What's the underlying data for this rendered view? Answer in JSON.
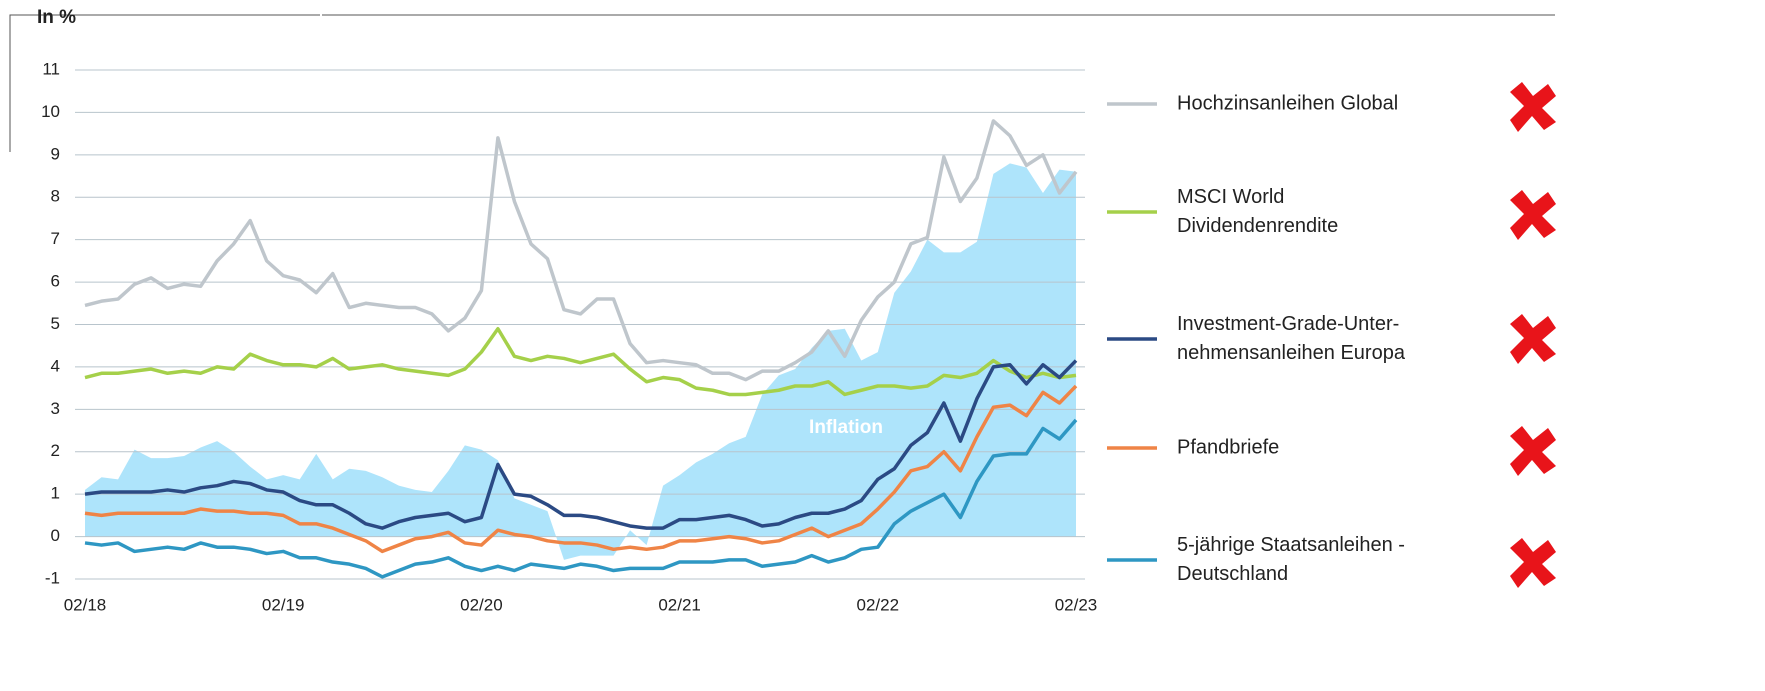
{
  "chart_data": {
    "type": "line",
    "ylabel": "In %",
    "categories": [
      "02/18",
      null,
      null,
      null,
      null,
      null,
      null,
      null,
      null,
      null,
      null,
      null,
      "02/19",
      null,
      null,
      null,
      null,
      null,
      null,
      null,
      null,
      null,
      null,
      null,
      "02/20",
      null,
      null,
      null,
      null,
      null,
      null,
      null,
      null,
      null,
      null,
      null,
      "02/21",
      null,
      null,
      null,
      null,
      null,
      null,
      null,
      null,
      null,
      null,
      null,
      "02/22",
      null,
      null,
      null,
      null,
      null,
      null,
      null,
      null,
      null,
      null,
      null,
      "02/23"
    ],
    "ylim": [
      -1,
      11
    ],
    "yticks": [
      -1,
      0,
      1,
      2,
      3,
      4,
      5,
      6,
      7,
      8,
      9,
      10,
      11
    ],
    "grid": true,
    "area": {
      "name": "Inflation",
      "color": "#aee4fb",
      "values": [
        1.1,
        1.4,
        1.35,
        2.05,
        1.85,
        1.85,
        1.9,
        2.1,
        2.25,
        2.0,
        1.65,
        1.35,
        1.45,
        1.35,
        1.95,
        1.35,
        1.6,
        1.55,
        1.4,
        1.2,
        1.1,
        1.05,
        1.55,
        2.15,
        2.05,
        1.8,
        0.9,
        0.75,
        0.6,
        -0.55,
        -0.45,
        -0.45,
        -0.45,
        0.15,
        -0.2,
        1.2,
        1.45,
        1.75,
        1.95,
        2.2,
        2.35,
        3.35,
        3.8,
        3.95,
        4.45,
        4.85,
        4.9,
        4.15,
        4.35,
        5.75,
        6.25,
        7.0,
        6.7,
        6.7,
        6.95,
        8.55,
        8.8,
        8.7,
        8.1,
        8.65,
        8.6
      ]
    },
    "series": [
      {
        "name": "Hochzinsanleihen Global",
        "color": "#bfc6cc",
        "values": [
          5.45,
          5.55,
          5.6,
          5.95,
          6.1,
          5.85,
          5.95,
          5.9,
          6.5,
          6.9,
          7.45,
          6.5,
          6.15,
          6.05,
          5.75,
          6.2,
          5.4,
          5.5,
          5.45,
          5.4,
          5.4,
          5.25,
          4.85,
          5.15,
          5.8,
          9.4,
          7.9,
          6.9,
          6.55,
          5.35,
          5.25,
          5.6,
          5.6,
          4.55,
          4.1,
          4.15,
          4.1,
          4.05,
          3.85,
          3.85,
          3.7,
          3.9,
          3.9,
          4.1,
          4.35,
          4.85,
          4.25,
          5.1,
          5.65,
          6.0,
          6.9,
          7.05,
          8.95,
          7.9,
          8.45,
          9.8,
          9.45,
          8.75,
          9.0,
          8.1,
          8.6
        ]
      },
      {
        "name": "MSCI World\nDividendenrendite",
        "color": "#a5d04a",
        "values": [
          3.75,
          3.85,
          3.85,
          3.9,
          3.95,
          3.85,
          3.9,
          3.85,
          4.0,
          3.95,
          4.3,
          4.15,
          4.05,
          4.05,
          4.0,
          4.2,
          3.95,
          4.0,
          4.05,
          3.95,
          3.9,
          3.85,
          3.8,
          3.95,
          4.35,
          4.9,
          4.25,
          4.15,
          4.25,
          4.2,
          4.1,
          4.2,
          4.3,
          3.95,
          3.65,
          3.75,
          3.7,
          3.5,
          3.45,
          3.35,
          3.35,
          3.4,
          3.45,
          3.55,
          3.55,
          3.65,
          3.35,
          3.45,
          3.55,
          3.55,
          3.5,
          3.55,
          3.8,
          3.75,
          3.85,
          4.15,
          3.9,
          3.75,
          3.85,
          3.75,
          3.8
        ]
      },
      {
        "name": "Investment-Grade-Unter-\nnehmensanleihen Europa",
        "color": "#2b4a84",
        "values": [
          1.0,
          1.05,
          1.05,
          1.05,
          1.05,
          1.1,
          1.05,
          1.15,
          1.2,
          1.3,
          1.25,
          1.1,
          1.05,
          0.85,
          0.75,
          0.75,
          0.55,
          0.3,
          0.2,
          0.35,
          0.45,
          0.5,
          0.55,
          0.35,
          0.45,
          1.7,
          1.0,
          0.95,
          0.75,
          0.5,
          0.5,
          0.45,
          0.35,
          0.25,
          0.2,
          0.2,
          0.4,
          0.4,
          0.45,
          0.5,
          0.4,
          0.25,
          0.3,
          0.45,
          0.55,
          0.55,
          0.65,
          0.85,
          1.35,
          1.6,
          2.15,
          2.45,
          3.15,
          2.25,
          3.25,
          4.0,
          4.05,
          3.6,
          4.05,
          3.75,
          4.15
        ]
      },
      {
        "name": "Pfandbriefe",
        "color": "#ef8446",
        "values": [
          0.55,
          0.5,
          0.55,
          0.55,
          0.55,
          0.55,
          0.55,
          0.65,
          0.6,
          0.6,
          0.55,
          0.55,
          0.5,
          0.3,
          0.3,
          0.2,
          0.05,
          -0.1,
          -0.35,
          -0.2,
          -0.05,
          0.0,
          0.1,
          -0.15,
          -0.2,
          0.15,
          0.05,
          0.0,
          -0.1,
          -0.15,
          -0.15,
          -0.2,
          -0.3,
          -0.25,
          -0.3,
          -0.25,
          -0.1,
          -0.1,
          -0.05,
          0.0,
          -0.05,
          -0.15,
          -0.1,
          0.05,
          0.2,
          0.0,
          0.15,
          0.3,
          0.65,
          1.05,
          1.55,
          1.65,
          2.0,
          1.55,
          2.35,
          3.05,
          3.1,
          2.85,
          3.4,
          3.15,
          3.55
        ]
      },
      {
        "name": "5-jährige Staatsanleihen -\nDeutschland",
        "color": "#2e97c3",
        "values": [
          -0.15,
          -0.2,
          -0.15,
          -0.35,
          -0.3,
          -0.25,
          -0.3,
          -0.15,
          -0.25,
          -0.25,
          -0.3,
          -0.4,
          -0.35,
          -0.5,
          -0.5,
          -0.6,
          -0.65,
          -0.75,
          -0.95,
          -0.8,
          -0.65,
          -0.6,
          -0.5,
          -0.7,
          -0.8,
          -0.7,
          -0.8,
          -0.65,
          -0.7,
          -0.75,
          -0.65,
          -0.7,
          -0.8,
          -0.75,
          -0.75,
          -0.75,
          -0.6,
          -0.6,
          -0.6,
          -0.55,
          -0.55,
          -0.7,
          -0.65,
          -0.6,
          -0.45,
          -0.6,
          -0.5,
          -0.3,
          -0.25,
          0.3,
          0.6,
          0.8,
          1.0,
          0.45,
          1.3,
          1.9,
          1.95,
          1.95,
          2.55,
          2.3,
          2.75
        ]
      }
    ]
  }
}
